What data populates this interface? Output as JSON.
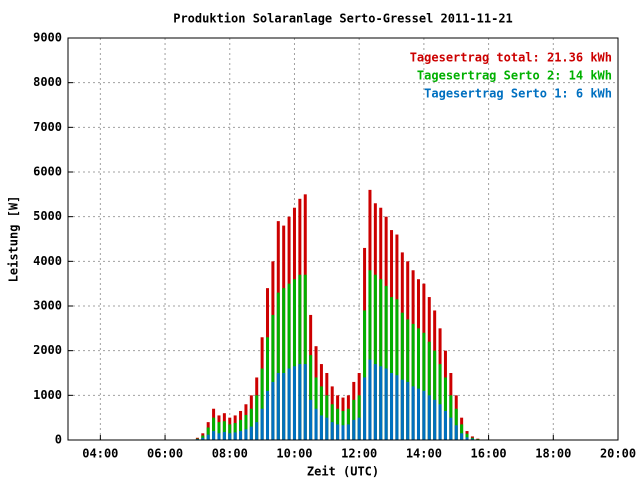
{
  "chart_data": {
    "type": "bar",
    "title": "Produktion Solaranlage Serto-Gressel 2011-11-21",
    "x_label": "Zeit (UTC)",
    "y_label": "Leistung [W]",
    "x": [
      420,
      430,
      440,
      450,
      460,
      470,
      480,
      490,
      500,
      510,
      520,
      530,
      540,
      550,
      560,
      570,
      580,
      590,
      600,
      610,
      620,
      630,
      640,
      650,
      660,
      670,
      680,
      690,
      700,
      710,
      720,
      730,
      740,
      750,
      760,
      770,
      780,
      790,
      800,
      810,
      820,
      830,
      840,
      850,
      860,
      870,
      880,
      890,
      900,
      910,
      920,
      930,
      940
    ],
    "series": [
      {
        "name": "Tagesertrag total: 21.36 kWh",
        "color": "#cc0000",
        "values": [
          50,
          150,
          400,
          700,
          550,
          600,
          500,
          550,
          650,
          800,
          1000,
          1400,
          2300,
          3400,
          4000,
          4900,
          4800,
          5000,
          5200,
          5400,
          5500,
          2800,
          2100,
          1700,
          1500,
          1200,
          1000,
          950,
          1000,
          1300,
          1500,
          4300,
          5600,
          5300,
          5200,
          5000,
          4700,
          4600,
          4200,
          4000,
          3800,
          3600,
          3500,
          3200,
          2900,
          2500,
          2000,
          1500,
          1000,
          500,
          200,
          80,
          30
        ]
      },
      {
        "name": "Tagesertrag Serto 2: 14 kWh",
        "color": "#00b000",
        "values": [
          30,
          100,
          280,
          500,
          400,
          420,
          350,
          380,
          450,
          560,
          700,
          1000,
          1600,
          2300,
          2800,
          3300,
          3400,
          3500,
          3600,
          3700,
          3700,
          1900,
          1400,
          1200,
          1000,
          800,
          700,
          650,
          700,
          900,
          1000,
          2900,
          3800,
          3700,
          3600,
          3450,
          3200,
          3150,
          2850,
          2700,
          2600,
          2500,
          2400,
          2200,
          2000,
          1700,
          1400,
          1000,
          700,
          350,
          140,
          50,
          20
        ]
      },
      {
        "name": "Tagesertrag Serto 1: 6 kWh",
        "color": "#0070c0",
        "values": [
          20,
          50,
          120,
          200,
          150,
          180,
          150,
          170,
          200,
          240,
          300,
          400,
          700,
          1100,
          1300,
          1500,
          1500,
          1600,
          1650,
          1700,
          1700,
          900,
          700,
          550,
          500,
          400,
          350,
          330,
          350,
          450,
          500,
          1400,
          1800,
          1700,
          1650,
          1600,
          1500,
          1450,
          1350,
          1300,
          1200,
          1150,
          1100,
          1000,
          900,
          800,
          650,
          500,
          330,
          150,
          60,
          30,
          10
        ]
      }
    ],
    "xlim": [
      180,
      1200
    ],
    "xticks": [
      {
        "value": 240,
        "label": "04:00"
      },
      {
        "value": 360,
        "label": "06:00"
      },
      {
        "value": 480,
        "label": "08:00"
      },
      {
        "value": 600,
        "label": "10:00"
      },
      {
        "value": 720,
        "label": "12:00"
      },
      {
        "value": 840,
        "label": "14:00"
      },
      {
        "value": 960,
        "label": "16:00"
      },
      {
        "value": 1080,
        "label": "18:00"
      },
      {
        "value": 1200,
        "label": "20:00"
      }
    ],
    "ylim": [
      0,
      9000
    ],
    "yticks": [
      0,
      1000,
      2000,
      3000,
      4000,
      5000,
      6000,
      7000,
      8000,
      9000
    ],
    "grid": true,
    "legend": "top right"
  }
}
